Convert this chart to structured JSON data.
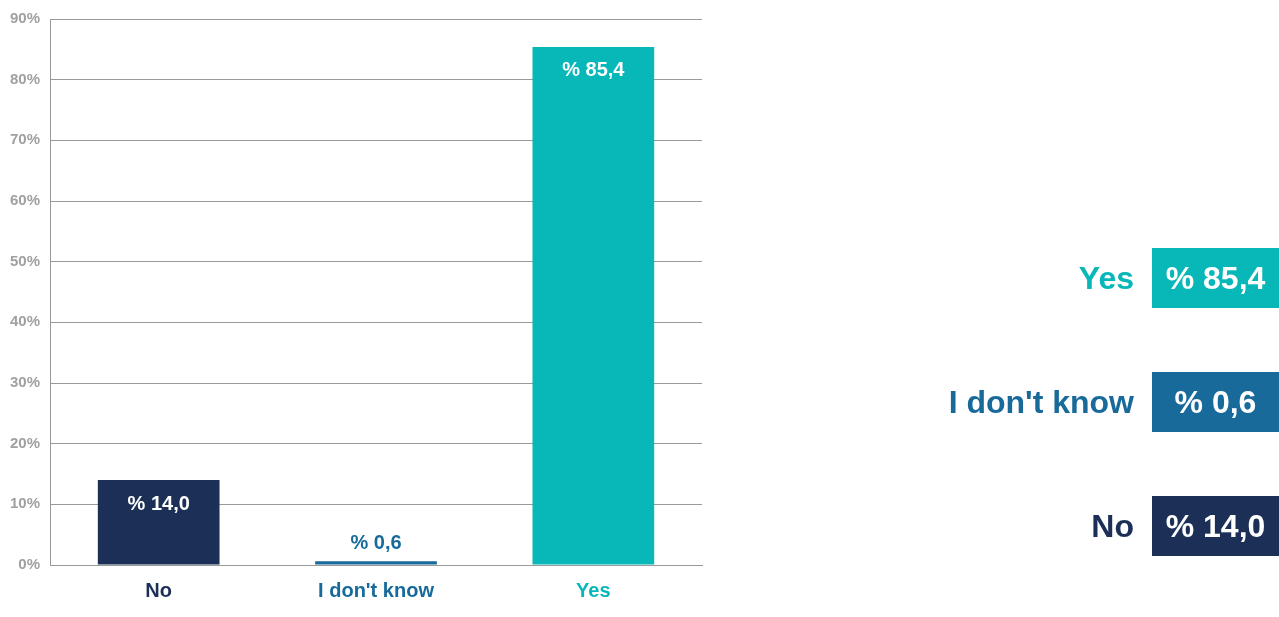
{
  "chart_data": {
    "type": "bar",
    "categories": [
      "No",
      "I don't know",
      "Yes"
    ],
    "values": [
      14.0,
      0.6,
      85.4
    ],
    "colors": [
      "#1b2f57",
      "#176a9a",
      "#08b7b7"
    ],
    "value_labels": [
      "% 14,0",
      "% 0,6",
      "% 85,4"
    ],
    "ylim": [
      0,
      90
    ],
    "yticks": [
      {
        "value": 0,
        "label": "0%"
      },
      {
        "value": 10,
        "label": "10%"
      },
      {
        "value": 20,
        "label": "20%"
      },
      {
        "value": 30,
        "label": "30%"
      },
      {
        "value": 40,
        "label": "40%"
      },
      {
        "value": 50,
        "label": "50%"
      },
      {
        "value": 60,
        "label": "60%"
      },
      {
        "value": 70,
        "label": "70%"
      },
      {
        "value": 80,
        "label": "80%"
      },
      {
        "value": 90,
        "label": "90%"
      }
    ],
    "grid": "y"
  }
}
